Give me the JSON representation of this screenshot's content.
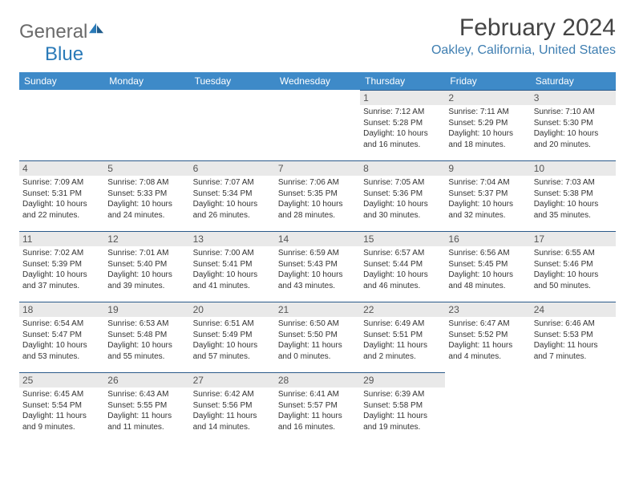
{
  "logo": {
    "text1": "General",
    "text2": "Blue"
  },
  "title": "February 2024",
  "location": "Oakley, California, United States",
  "colors": {
    "header_bg": "#3e8ac8",
    "header_text": "#ffffff",
    "daynum_bg": "#e9e9e9",
    "daynum_border": "#2a5a8a",
    "location_color": "#3e7eb1",
    "logo_blue": "#2a7ab8"
  },
  "weekdays": [
    "Sunday",
    "Monday",
    "Tuesday",
    "Wednesday",
    "Thursday",
    "Friday",
    "Saturday"
  ],
  "weeks": [
    [
      null,
      null,
      null,
      null,
      {
        "d": "1",
        "sr": "7:12 AM",
        "ss": "5:28 PM",
        "dl": "10 hours and 16 minutes."
      },
      {
        "d": "2",
        "sr": "7:11 AM",
        "ss": "5:29 PM",
        "dl": "10 hours and 18 minutes."
      },
      {
        "d": "3",
        "sr": "7:10 AM",
        "ss": "5:30 PM",
        "dl": "10 hours and 20 minutes."
      }
    ],
    [
      {
        "d": "4",
        "sr": "7:09 AM",
        "ss": "5:31 PM",
        "dl": "10 hours and 22 minutes."
      },
      {
        "d": "5",
        "sr": "7:08 AM",
        "ss": "5:33 PM",
        "dl": "10 hours and 24 minutes."
      },
      {
        "d": "6",
        "sr": "7:07 AM",
        "ss": "5:34 PM",
        "dl": "10 hours and 26 minutes."
      },
      {
        "d": "7",
        "sr": "7:06 AM",
        "ss": "5:35 PM",
        "dl": "10 hours and 28 minutes."
      },
      {
        "d": "8",
        "sr": "7:05 AM",
        "ss": "5:36 PM",
        "dl": "10 hours and 30 minutes."
      },
      {
        "d": "9",
        "sr": "7:04 AM",
        "ss": "5:37 PM",
        "dl": "10 hours and 32 minutes."
      },
      {
        "d": "10",
        "sr": "7:03 AM",
        "ss": "5:38 PM",
        "dl": "10 hours and 35 minutes."
      }
    ],
    [
      {
        "d": "11",
        "sr": "7:02 AM",
        "ss": "5:39 PM",
        "dl": "10 hours and 37 minutes."
      },
      {
        "d": "12",
        "sr": "7:01 AM",
        "ss": "5:40 PM",
        "dl": "10 hours and 39 minutes."
      },
      {
        "d": "13",
        "sr": "7:00 AM",
        "ss": "5:41 PM",
        "dl": "10 hours and 41 minutes."
      },
      {
        "d": "14",
        "sr": "6:59 AM",
        "ss": "5:43 PM",
        "dl": "10 hours and 43 minutes."
      },
      {
        "d": "15",
        "sr": "6:57 AM",
        "ss": "5:44 PM",
        "dl": "10 hours and 46 minutes."
      },
      {
        "d": "16",
        "sr": "6:56 AM",
        "ss": "5:45 PM",
        "dl": "10 hours and 48 minutes."
      },
      {
        "d": "17",
        "sr": "6:55 AM",
        "ss": "5:46 PM",
        "dl": "10 hours and 50 minutes."
      }
    ],
    [
      {
        "d": "18",
        "sr": "6:54 AM",
        "ss": "5:47 PM",
        "dl": "10 hours and 53 minutes."
      },
      {
        "d": "19",
        "sr": "6:53 AM",
        "ss": "5:48 PM",
        "dl": "10 hours and 55 minutes."
      },
      {
        "d": "20",
        "sr": "6:51 AM",
        "ss": "5:49 PM",
        "dl": "10 hours and 57 minutes."
      },
      {
        "d": "21",
        "sr": "6:50 AM",
        "ss": "5:50 PM",
        "dl": "11 hours and 0 minutes."
      },
      {
        "d": "22",
        "sr": "6:49 AM",
        "ss": "5:51 PM",
        "dl": "11 hours and 2 minutes."
      },
      {
        "d": "23",
        "sr": "6:47 AM",
        "ss": "5:52 PM",
        "dl": "11 hours and 4 minutes."
      },
      {
        "d": "24",
        "sr": "6:46 AM",
        "ss": "5:53 PM",
        "dl": "11 hours and 7 minutes."
      }
    ],
    [
      {
        "d": "25",
        "sr": "6:45 AM",
        "ss": "5:54 PM",
        "dl": "11 hours and 9 minutes."
      },
      {
        "d": "26",
        "sr": "6:43 AM",
        "ss": "5:55 PM",
        "dl": "11 hours and 11 minutes."
      },
      {
        "d": "27",
        "sr": "6:42 AM",
        "ss": "5:56 PM",
        "dl": "11 hours and 14 minutes."
      },
      {
        "d": "28",
        "sr": "6:41 AM",
        "ss": "5:57 PM",
        "dl": "11 hours and 16 minutes."
      },
      {
        "d": "29",
        "sr": "6:39 AM",
        "ss": "5:58 PM",
        "dl": "11 hours and 19 minutes."
      },
      null,
      null
    ]
  ],
  "labels": {
    "sunrise": "Sunrise: ",
    "sunset": "Sunset: ",
    "daylight": "Daylight: "
  }
}
